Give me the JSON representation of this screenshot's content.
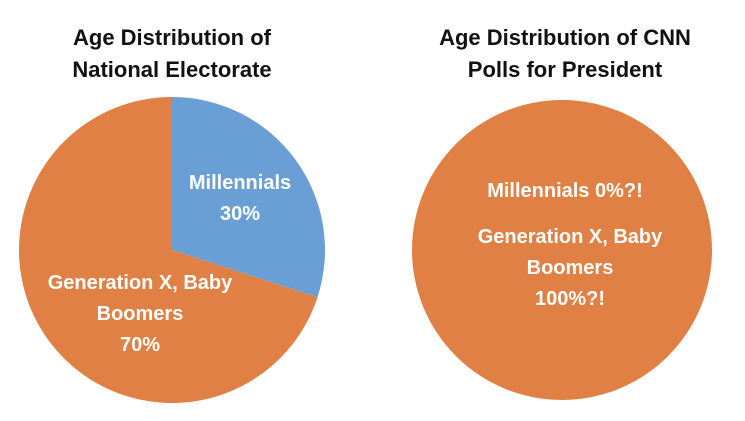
{
  "chart_data": [
    {
      "type": "pie",
      "title": "Age Distribution of National Electorate",
      "categories": [
        "Millennials",
        "Generation X, Baby Boomers"
      ],
      "values": [
        30,
        70
      ],
      "value_labels": [
        "30%",
        "70%"
      ],
      "colors": [
        "#6a9fd6",
        "#e08044"
      ]
    },
    {
      "type": "pie",
      "title": "Age Distribution of CNN Polls for President",
      "categories": [
        "Millennials",
        "Generation X, Baby Boomers"
      ],
      "values": [
        0,
        100
      ],
      "value_labels": [
        "0%?!",
        "100%?!"
      ],
      "colors": [
        "#6a9fd6",
        "#e08044"
      ]
    }
  ]
}
